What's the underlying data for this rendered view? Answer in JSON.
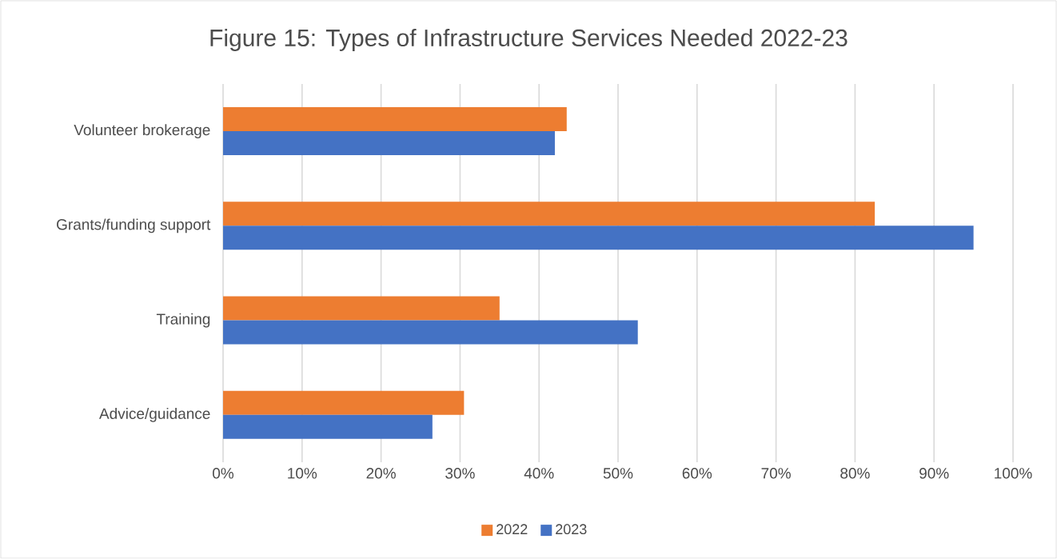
{
  "chart_data": {
    "type": "bar",
    "orientation": "horizontal",
    "title": "Figure 15: Types of Infrastructure Services Needed 2022-23",
    "categories": [
      "Volunteer brokerage",
      "Grants/funding support",
      "Training",
      "Advice/guidance"
    ],
    "series": [
      {
        "name": "2022",
        "color": "#ed7d31",
        "values": [
          43.5,
          82.5,
          35,
          30.5
        ]
      },
      {
        "name": "2023",
        "color": "#4472c4",
        "values": [
          42,
          95,
          52.5,
          26.5
        ]
      }
    ],
    "xlim": [
      0,
      100
    ],
    "xticks": [
      {
        "value": 0,
        "label": "0%"
      },
      {
        "value": 10,
        "label": "10%"
      },
      {
        "value": 20,
        "label": "20%"
      },
      {
        "value": 30,
        "label": "30%"
      },
      {
        "value": 40,
        "label": "40%"
      },
      {
        "value": 50,
        "label": "50%"
      },
      {
        "value": 60,
        "label": "60%"
      },
      {
        "value": 70,
        "label": "70%"
      },
      {
        "value": 80,
        "label": "80%"
      },
      {
        "value": 90,
        "label": "90%"
      },
      {
        "value": 100,
        "label": "100%"
      }
    ],
    "grid": "x",
    "legend": "bottom"
  }
}
